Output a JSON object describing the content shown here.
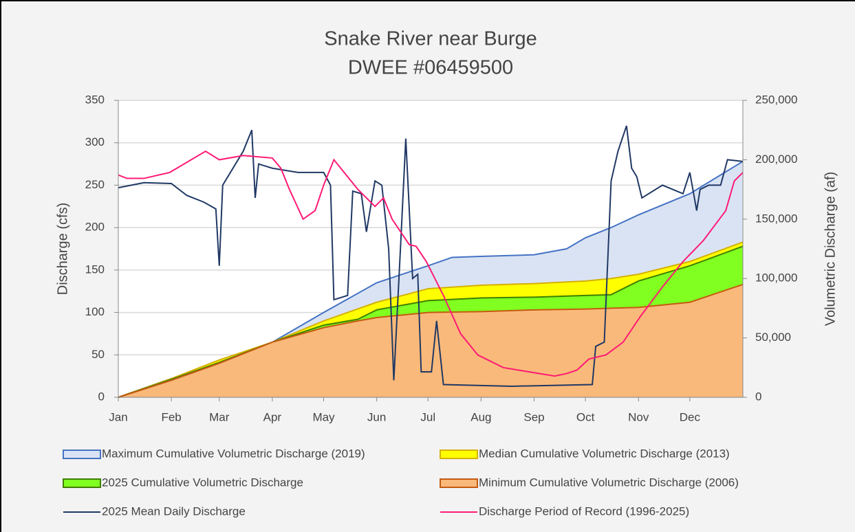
{
  "chart_data": {
    "type": "area",
    "title": "Snake River near Burge",
    "subtitle": "DWEE #06459500",
    "y_label": "Discharge (cfs)",
    "y2_label": "Volumetric Discharge (af)",
    "xlim": [
      0,
      365
    ],
    "xticks": [
      {
        "value": 0,
        "label": "Jan"
      },
      {
        "value": 31,
        "label": "Feb"
      },
      {
        "value": 59,
        "label": "Mar"
      },
      {
        "value": 90,
        "label": "Apr"
      },
      {
        "value": 120,
        "label": "May"
      },
      {
        "value": 151,
        "label": "Jun"
      },
      {
        "value": 181,
        "label": "Jul"
      },
      {
        "value": 212,
        "label": "Aug"
      },
      {
        "value": 243,
        "label": "Sep"
      },
      {
        "value": 273,
        "label": "Oct"
      },
      {
        "value": 304,
        "label": "Nov"
      },
      {
        "value": 334,
        "label": "Dec"
      }
    ],
    "ylim": [
      0,
      350
    ],
    "yticks": [
      0,
      50,
      100,
      150,
      200,
      250,
      300,
      350
    ],
    "y2lim": [
      0,
      250000
    ],
    "y2ticks": [
      0,
      {
        "value": 50000,
        "label": "50,000"
      },
      {
        "value": 100000,
        "label": "100,000"
      },
      {
        "value": 150000,
        "label": "150,000"
      },
      {
        "value": 200000,
        "label": "200,000"
      },
      {
        "value": 250000,
        "label": "250,000"
      }
    ],
    "grid": true,
    "legend": "bottom",
    "series": [
      {
        "name": "Maximum Cumulative Volumetric Discharge (2019)",
        "type": "area",
        "axis": "y2",
        "color": "#dae3f3",
        "edge": "#4472c4",
        "x": [
          0,
          59,
          90,
          120,
          151,
          166,
          181,
          195,
          212,
          243,
          262,
          273,
          288,
          304,
          334,
          365
        ],
        "values": [
          0,
          30000,
          46400,
          71400,
          96400,
          103600,
          110700,
          117800,
          118600,
          120000,
          125000,
          134300,
          142900,
          153600,
          171400,
          198600
        ]
      },
      {
        "name": "Median Cumulative Volumetric Discharge (2013)",
        "type": "area",
        "axis": "y2",
        "color": "#ffff00",
        "edge": "#d4b000",
        "x": [
          0,
          31,
          59,
          90,
          120,
          151,
          166,
          181,
          212,
          243,
          273,
          288,
          304,
          334,
          365
        ],
        "values": [
          0,
          15700,
          31400,
          46400,
          64300,
          80000,
          85700,
          91400,
          94300,
          95700,
          97900,
          100000,
          103600,
          114300,
          130700
        ]
      },
      {
        "name": "2025 Cumulative Volumetric Discharge",
        "type": "area",
        "axis": "y2",
        "color": "#80ff20",
        "edge": "#3f7f00",
        "x": [
          0,
          31,
          59,
          90,
          120,
          140,
          151,
          181,
          212,
          243,
          273,
          288,
          304,
          334,
          365
        ],
        "values": [
          0,
          15000,
          29300,
          46400,
          60700,
          65700,
          73600,
          81400,
          83600,
          84300,
          85700,
          86400,
          97900,
          110700,
          127100
        ]
      },
      {
        "name": "Minimum Cumulative Volumetric Discharge (2006)",
        "type": "area",
        "axis": "y2",
        "color": "#f9b97a",
        "edge": "#c55a11",
        "x": [
          0,
          31,
          59,
          90,
          120,
          140,
          151,
          181,
          212,
          243,
          273,
          304,
          334,
          365
        ],
        "values": [
          0,
          14300,
          28600,
          46400,
          58600,
          64300,
          67100,
          71400,
          72100,
          73600,
          74300,
          75700,
          80000,
          95000
        ]
      },
      {
        "name": "2025 Mean Daily Discharge",
        "type": "line",
        "axis": "y",
        "color": "#1f3864",
        "x": [
          0,
          15,
          31,
          40,
          50,
          57,
          59,
          61,
          73,
          78,
          80,
          82,
          90,
          105,
          120,
          124,
          126,
          134,
          137,
          142,
          145,
          150,
          154,
          158,
          161,
          165,
          168,
          172,
          175,
          177,
          183,
          186,
          190,
          230,
          277,
          279,
          284,
          288,
          292,
          297,
          300,
          303,
          306,
          318,
          330,
          334,
          338,
          340,
          345,
          352,
          356,
          365
        ],
        "values": [
          247,
          253,
          252,
          238,
          230,
          222,
          155,
          250,
          290,
          315,
          235,
          275,
          270,
          265,
          265,
          250,
          115,
          120,
          243,
          240,
          195,
          255,
          250,
          175,
          20,
          180,
          305,
          140,
          145,
          30,
          30,
          90,
          15,
          13,
          15,
          60,
          65,
          255,
          290,
          320,
          270,
          260,
          235,
          250,
          240,
          265,
          220,
          245,
          250,
          250,
          280,
          278
        ]
      },
      {
        "name": "Discharge Period of Record (1996-2025)",
        "type": "line",
        "axis": "y",
        "color": "#ff1a75",
        "x": [
          0,
          5,
          15,
          30,
          51,
          59,
          73,
          90,
          95,
          100,
          108,
          115,
          120,
          126,
          130,
          140,
          150,
          155,
          160,
          170,
          174,
          180,
          190,
          200,
          210,
          225,
          240,
          255,
          262,
          268,
          275,
          285,
          295,
          305,
          318,
          330,
          342,
          355,
          360,
          365
        ],
        "values": [
          262,
          258,
          258,
          265,
          290,
          280,
          285,
          282,
          270,
          245,
          210,
          220,
          250,
          280,
          270,
          245,
          225,
          235,
          210,
          180,
          178,
          160,
          120,
          75,
          50,
          35,
          30,
          25,
          28,
          32,
          45,
          50,
          65,
          95,
          130,
          160,
          185,
          220,
          255,
          265
        ]
      }
    ]
  }
}
